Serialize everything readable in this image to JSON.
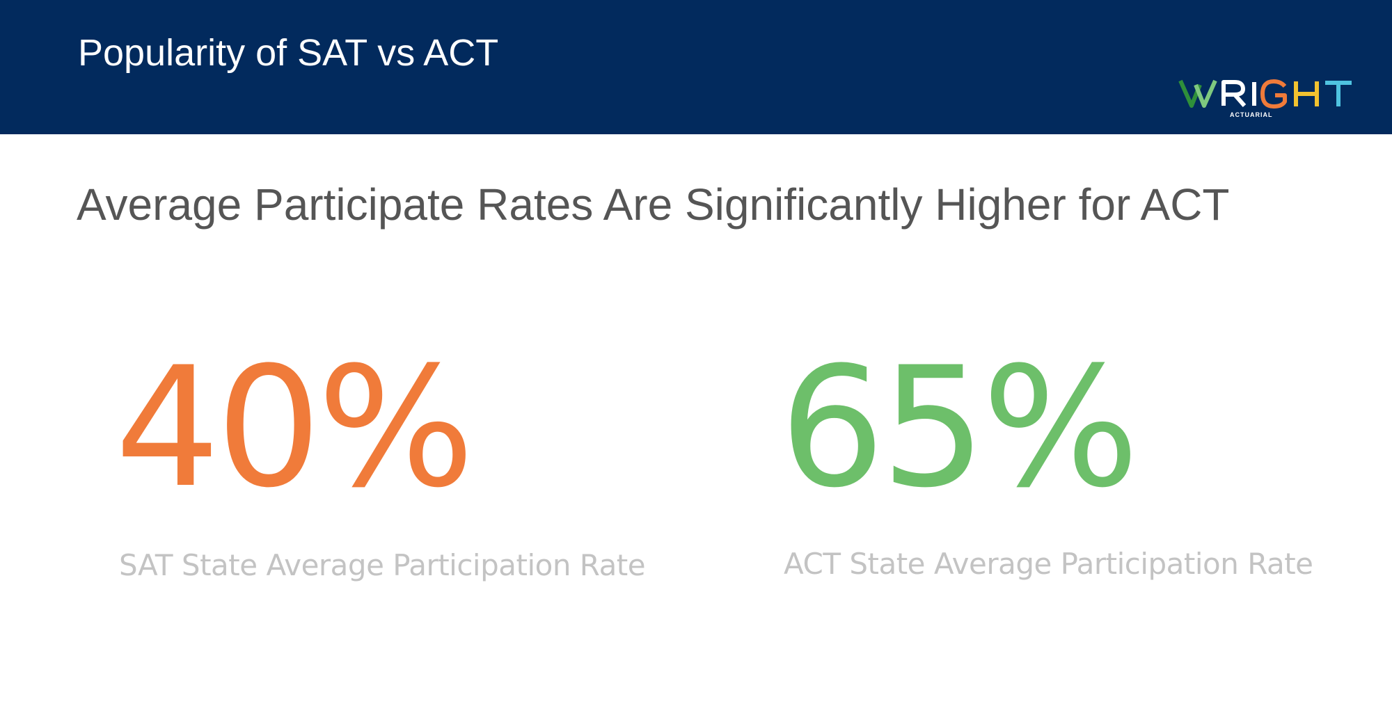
{
  "header": {
    "title": "Popularity of SAT vs ACT",
    "logo": {
      "wordmark": "WRIGHT",
      "subtext": "ACTUARIAL",
      "colors": {
        "w_dark": "#2f8f3a",
        "w_light": "#7fc97f",
        "r": "#ffffff",
        "i": "#ffffff",
        "g": "#f07b3a",
        "h": "#f2c230",
        "t": "#4fc3e0"
      }
    },
    "background_color": "#022a5d"
  },
  "subtitle": "Average Participate Rates Are Significantly Higher for ACT",
  "stats": [
    {
      "value": "40%",
      "caption": "SAT State Average Participation Rate",
      "color": "#f07b3a"
    },
    {
      "value": "65%",
      "caption": "ACT State Average Participation Rate",
      "color": "#6dbf6a"
    }
  ]
}
